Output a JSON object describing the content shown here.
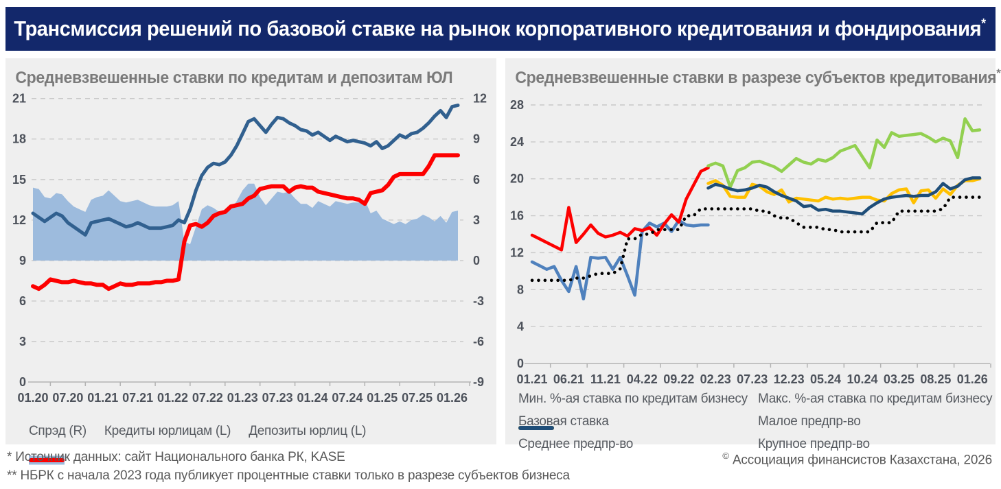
{
  "header": {
    "title": "Трансмиссия решений по базовой ставке на рынок корпоративного кредитования и фондирования",
    "title_suffix": "*",
    "bg_color": "#13286b",
    "text_color": "#ffffff"
  },
  "footnotes": {
    "line1": "* Источник данных: сайт Национального банка РК, KASE",
    "line2": "** НБРК с начала 2023 года публикует процентные ставки только в разрезе субъектов бизнеса"
  },
  "copyright": {
    "symbol": "©",
    "text": "Ассоциация финансистов Казахстана, 2026"
  },
  "chart_data": [
    {
      "id": "loans-deposits",
      "type": "line",
      "title": "Средневзвешенные ставки по кредитам и депозитам ЮЛ",
      "title_suffix": "",
      "x_start": "01.20",
      "x_end": "02.26",
      "x_frequency": "monthly",
      "n_points": 74,
      "x_tick_every": 6,
      "x_tick_labels": [
        "01.20",
        "07.20",
        "01.21",
        "07.21",
        "01.22",
        "07.22",
        "01.23",
        "07.23",
        "01.24",
        "07.24",
        "01.25",
        "07.25",
        "01.26"
      ],
      "y_axis_left": {
        "min": 0,
        "max": 21,
        "step": 3
      },
      "y_axis_right": {
        "min": -9,
        "max": 12,
        "step": 3
      },
      "grid": "horizontal-dashed",
      "legend_position": "bottom",
      "series": [
        {
          "name": "Спрэд (R)",
          "slug": "spread",
          "type": "area",
          "axis": "right",
          "color": "#9dbbdd",
          "width": 0,
          "values": [
            5.4,
            5.3,
            4.7,
            4.6,
            5.0,
            4.9,
            4.4,
            4.0,
            3.8,
            3.6,
            4.5,
            4.7,
            4.8,
            5.2,
            4.8,
            4.4,
            4.3,
            4.4,
            4.5,
            4.3,
            4.1,
            4.0,
            4.0,
            4.0,
            4.1,
            4.4,
            1.4,
            1.2,
            2.5,
            3.8,
            4.1,
            3.9,
            3.6,
            3.7,
            3.8,
            4.4,
            5.2,
            5.7,
            5.7,
            4.7,
            4.1,
            4.6,
            5.1,
            5.0,
            5.1,
            4.6,
            4.2,
            4.2,
            3.9,
            4.4,
            4.2,
            4.0,
            4.4,
            4.3,
            4.2,
            4.3,
            4.3,
            4.5,
            3.5,
            3.7,
            3.1,
            2.9,
            2.7,
            2.9,
            2.7,
            3.0,
            3.1,
            3.4,
            3.2,
            2.9,
            3.3,
            2.8,
            3.6,
            3.7
          ]
        },
        {
          "name": "Кредиты юрлицам (L)",
          "slug": "loans",
          "type": "line",
          "axis": "left",
          "color": "#31608f",
          "width": 5,
          "values": [
            12.5,
            12.2,
            11.9,
            12.2,
            12.5,
            12.3,
            11.8,
            11.5,
            11.2,
            10.9,
            11.8,
            11.9,
            12.0,
            12.1,
            11.9,
            11.7,
            11.5,
            11.6,
            11.8,
            11.6,
            11.4,
            11.4,
            11.4,
            11.5,
            11.6,
            12.0,
            11.8,
            12.8,
            14.2,
            15.3,
            15.9,
            16.2,
            16.1,
            16.3,
            16.8,
            17.5,
            18.4,
            19.3,
            19.5,
            19.0,
            18.5,
            19.1,
            19.6,
            19.5,
            19.2,
            19.0,
            18.7,
            18.6,
            18.3,
            18.5,
            18.2,
            17.9,
            18.2,
            18.0,
            17.8,
            17.9,
            17.8,
            17.7,
            17.5,
            17.8,
            17.3,
            17.5,
            17.9,
            18.3,
            18.1,
            18.4,
            18.5,
            18.8,
            19.2,
            19.7,
            20.1,
            19.6,
            20.4,
            20.5
          ]
        },
        {
          "name": "Депозиты юрлиц (L)",
          "slug": "deposits",
          "type": "line",
          "axis": "left",
          "color": "#fd0000",
          "width": 6,
          "values": [
            7.1,
            6.9,
            7.2,
            7.6,
            7.5,
            7.4,
            7.4,
            7.5,
            7.4,
            7.3,
            7.3,
            7.2,
            7.2,
            6.9,
            7.1,
            7.3,
            7.2,
            7.2,
            7.3,
            7.3,
            7.3,
            7.4,
            7.4,
            7.5,
            7.5,
            7.6,
            10.4,
            11.6,
            11.7,
            11.5,
            11.8,
            12.3,
            12.5,
            12.6,
            13.0,
            13.1,
            13.2,
            13.6,
            13.8,
            14.3,
            14.4,
            14.5,
            14.5,
            14.5,
            14.1,
            14.4,
            14.5,
            14.4,
            14.4,
            14.1,
            14.0,
            13.9,
            13.8,
            13.7,
            13.6,
            13.6,
            13.5,
            13.2,
            14.0,
            14.1,
            14.2,
            14.6,
            15.2,
            15.4,
            15.4,
            15.4,
            15.4,
            15.4,
            16.0,
            16.8,
            16.8,
            16.8,
            16.8,
            16.8
          ]
        }
      ]
    },
    {
      "id": "by-subject",
      "type": "line",
      "title": "Средневзвешенные ставки в разрезе субъектов кредитования",
      "title_suffix": "**",
      "x_start": "01.21",
      "x_end": "02.26",
      "x_frequency": "monthly",
      "n_points": 62,
      "x_tick_every": 5,
      "x_tick_labels": [
        "01.21",
        "06.21",
        "11.21",
        "04.22",
        "09.22",
        "02.23",
        "07.23",
        "12.23",
        "05.24",
        "10.24",
        "03.25",
        "08.25",
        "01.26"
      ],
      "y_axis_left": {
        "min": 0,
        "max": 28,
        "step": 4
      },
      "y_axis_right": null,
      "grid": "horizontal-dashed",
      "legend_position": "bottom",
      "series": [
        {
          "name": "Мин. %-ая ставка по кредитам бизнесу",
          "slug": "min-rate",
          "type": "line",
          "axis": "left",
          "color": "#4f81bd",
          "width": 4.5,
          "start": 0,
          "values": [
            11.0,
            10.6,
            10.2,
            10.5,
            9.0,
            7.8,
            10.5,
            7.0,
            11.5,
            11.4,
            11.5,
            10.2,
            11.5,
            9.5,
            7.4,
            14.3,
            15.2,
            14.8,
            15.2,
            14.3,
            15.5,
            15.0,
            14.9,
            15.0,
            15.0
          ]
        },
        {
          "name": "Макс. %-ая ставка по кредитам бизнесу",
          "slug": "max-rate",
          "type": "line",
          "axis": "left",
          "color": "#fd0000",
          "width": 4.5,
          "start": 0,
          "values": [
            13.9,
            13.5,
            13.1,
            12.7,
            12.3,
            16.9,
            13.1,
            14.0,
            15.0,
            14.1,
            13.7,
            13.9,
            14.2,
            13.8,
            14.6,
            14.4,
            14.7,
            13.9,
            15.1,
            16.1,
            15.3,
            17.8,
            19.3,
            20.8,
            21.2
          ]
        },
        {
          "name": "Базовая ставка",
          "slug": "base-rate",
          "type": "dotted",
          "axis": "left",
          "color": "#000000",
          "width": 4.6,
          "start": 0,
          "values": [
            9.0,
            9.0,
            9.0,
            9.0,
            9.0,
            9.0,
            9.25,
            9.25,
            9.5,
            9.75,
            9.75,
            9.75,
            10.25,
            13.5,
            13.5,
            14.0,
            14.0,
            14.5,
            14.5,
            14.5,
            14.5,
            16.0,
            16.0,
            16.75,
            16.75,
            16.75,
            16.75,
            16.75,
            16.75,
            16.75,
            16.75,
            16.5,
            16.5,
            16.0,
            15.75,
            15.75,
            15.25,
            14.75,
            14.75,
            14.75,
            14.5,
            14.5,
            14.25,
            14.25,
            14.25,
            14.25,
            14.25,
            15.25,
            15.25,
            15.25,
            16.5,
            16.5,
            16.5,
            16.5,
            16.5,
            16.5,
            16.75,
            18.0,
            18.0,
            18.0,
            18.0,
            18.0
          ]
        },
        {
          "name": "Малое предпр-во",
          "slug": "small-business",
          "type": "line",
          "axis": "left",
          "color": "#92d050",
          "width": 4.5,
          "start": 24,
          "values": [
            21.4,
            21.7,
            21.4,
            19.1,
            20.9,
            21.2,
            21.8,
            21.9,
            21.6,
            21.3,
            20.8,
            21.5,
            22.2,
            21.8,
            21.6,
            22.1,
            21.9,
            22.3,
            23.0,
            23.3,
            23.6,
            22.4,
            21.2,
            24.2,
            23.4,
            25.0,
            24.6,
            24.7,
            24.8,
            24.9,
            24.5,
            24.0,
            24.4,
            24.1,
            22.3,
            26.5,
            25.2,
            25.3
          ]
        },
        {
          "name": "Среднее предпр-во",
          "slug": "medium-business",
          "type": "line",
          "axis": "left",
          "color": "#ffc000",
          "width": 4.5,
          "start": 24,
          "values": [
            19.5,
            19.8,
            19.3,
            18.1,
            18.0,
            18.0,
            19.4,
            19.2,
            18.6,
            18.3,
            18.8,
            17.5,
            17.9,
            17.8,
            17.7,
            17.6,
            18.0,
            17.8,
            17.9,
            17.8,
            17.9,
            18.0,
            18.0,
            17.7,
            17.6,
            18.4,
            18.8,
            18.9,
            17.4,
            18.7,
            18.8,
            17.9,
            18.9,
            18.3,
            19.3,
            19.8,
            19.8,
            20.0
          ]
        },
        {
          "name": "Крупное предпр-во",
          "slug": "large-business",
          "type": "line",
          "axis": "left",
          "color": "#1f4e79",
          "width": 4.5,
          "start": 24,
          "values": [
            19.0,
            19.4,
            19.2,
            18.9,
            18.7,
            18.8,
            19.0,
            19.3,
            19.1,
            18.6,
            18.2,
            17.9,
            17.6,
            17.0,
            17.1,
            16.6,
            16.7,
            16.5,
            16.5,
            16.4,
            16.3,
            16.2,
            16.9,
            17.4,
            17.8,
            18.0,
            18.1,
            18.2,
            18.1,
            18.2,
            18.2,
            18.6,
            19.5,
            18.9,
            19.2,
            19.9,
            20.1,
            20.1
          ]
        }
      ]
    }
  ]
}
